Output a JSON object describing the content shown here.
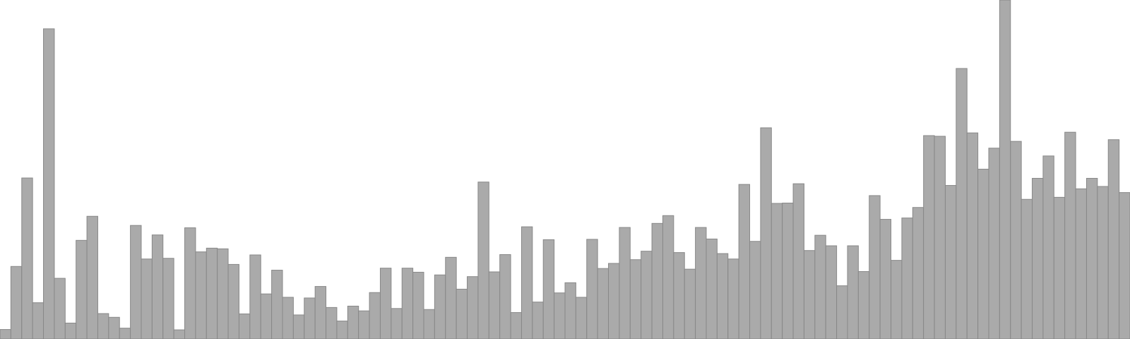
{
  "colors": {
    "bar_fill": "#aaaaaa",
    "bar_stroke": "#888888",
    "background": "#ffffff"
  },
  "chart_data": {
    "type": "bar",
    "title": "",
    "xlabel": "",
    "ylabel": "",
    "ylim": [
      0,
      100
    ],
    "grid": false,
    "legend": "none",
    "values": [
      2.8,
      21.4,
      47.5,
      10.7,
      91.5,
      17.9,
      4.7,
      29.1,
      36.2,
      7.5,
      6.4,
      3.2,
      33.5,
      23.6,
      30.7,
      23.8,
      2.7,
      32.8,
      25.7,
      26.8,
      26.6,
      22.0,
      7.4,
      24.8,
      13.3,
      20.3,
      12.3,
      7.1,
      12.1,
      15.5,
      9.3,
      5.3,
      9.7,
      8.3,
      13.7,
      20.9,
      9.0,
      20.9,
      19.7,
      8.7,
      18.9,
      24.1,
      14.7,
      18.4,
      46.3,
      19.8,
      24.9,
      7.8,
      33.1,
      10.9,
      29.3,
      13.6,
      16.6,
      12.3,
      29.4,
      20.8,
      22.3,
      32.9,
      23.4,
      25.9,
      34.1,
      36.4,
      25.5,
      20.6,
      32.9,
      29.5,
      25.2,
      23.6,
      45.6,
      28.8,
      62.3,
      40.0,
      40.1,
      45.8,
      26.1,
      30.6,
      27.5,
      15.7,
      27.5,
      19.9,
      42.3,
      35.3,
      23.2,
      35.7,
      38.8,
      60.0,
      59.8,
      45.3,
      79.8,
      60.8,
      50.1,
      56.3,
      100.0,
      58.3,
      41.2,
      47.4,
      54.0,
      41.8,
      61.0,
      44.3,
      47.4,
      45.0,
      58.8,
      43.2
    ]
  }
}
